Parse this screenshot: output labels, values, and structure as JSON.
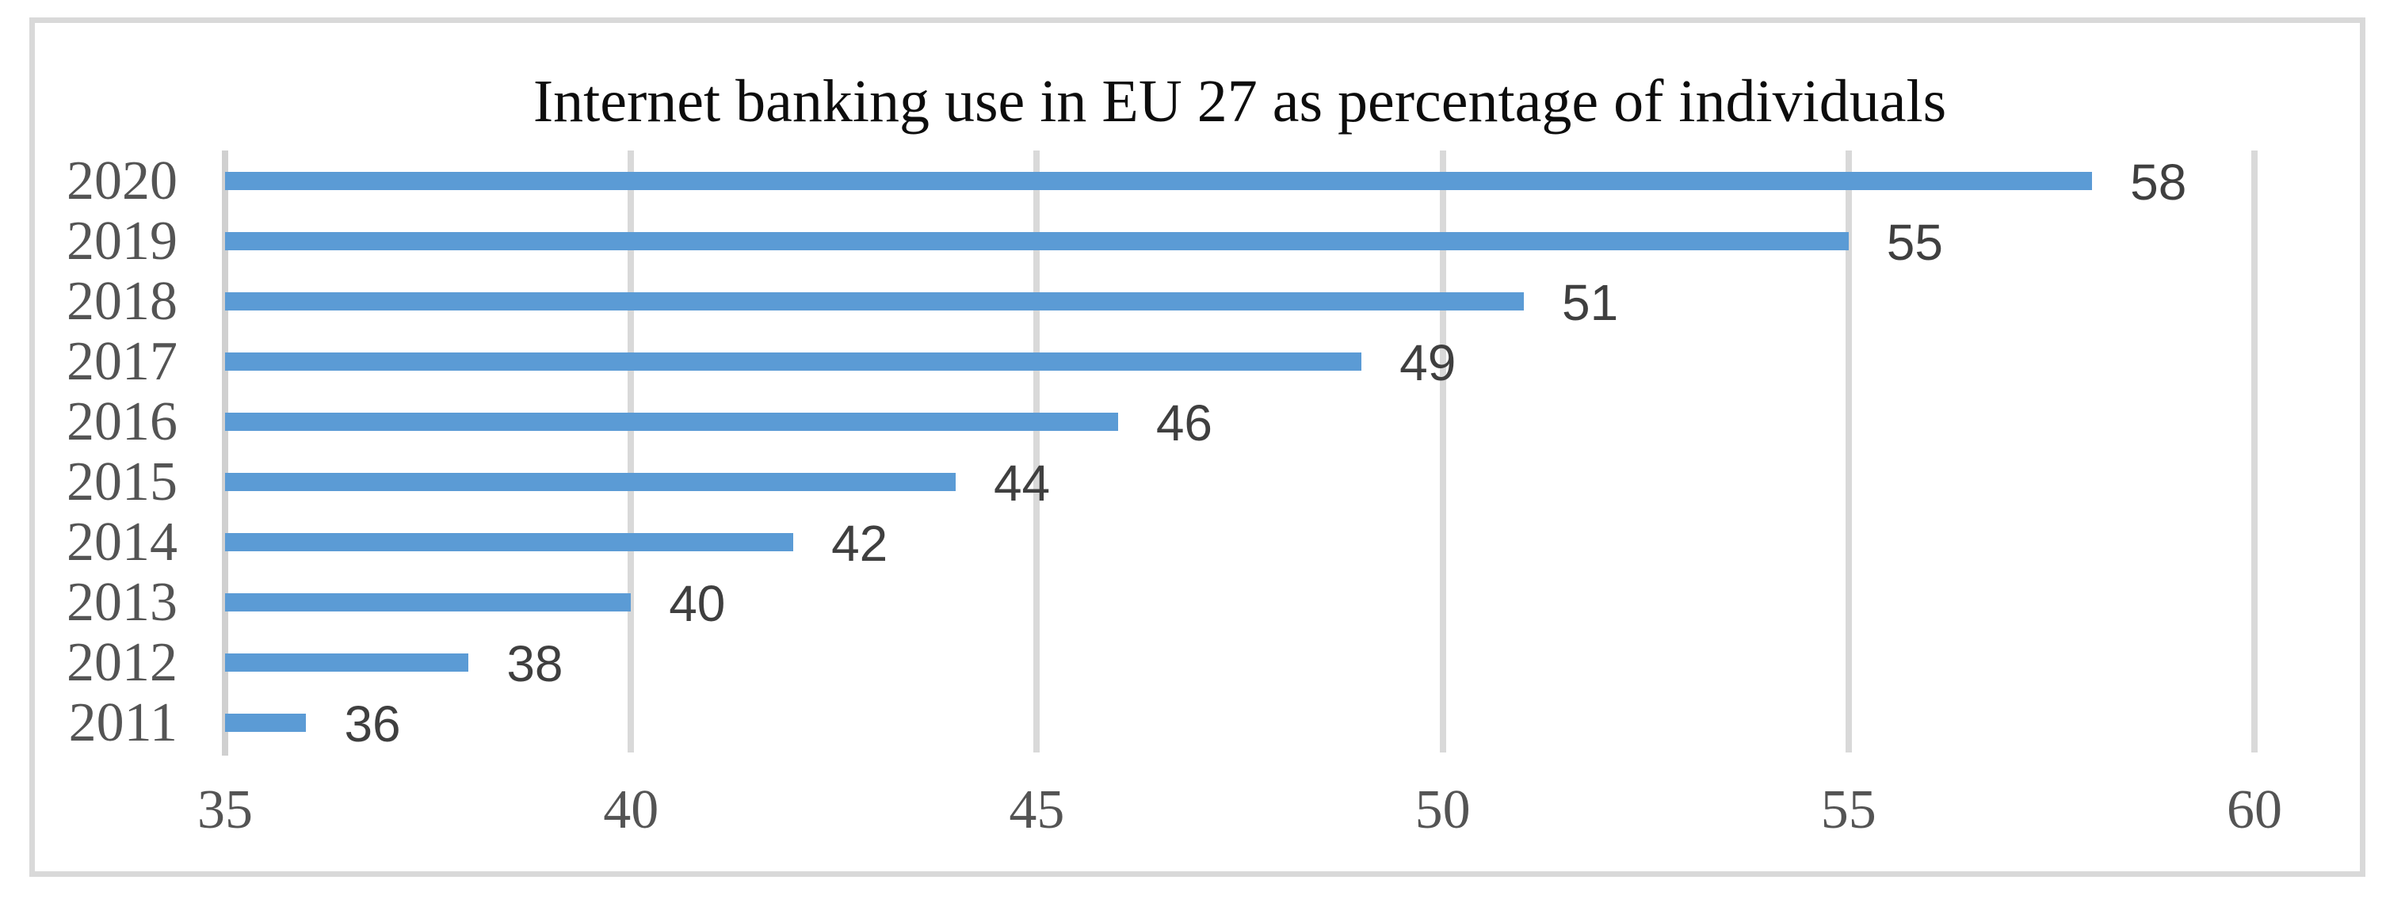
{
  "figure": {
    "border_color": "#D9D9D9",
    "background_color": "#FFFFFF"
  },
  "chart_data": {
    "type": "bar",
    "orientation": "horizontal",
    "title": "Internet banking use in EU 27 as percentage of individuals",
    "categories": [
      "2020",
      "2019",
      "2018",
      "2017",
      "2016",
      "2015",
      "2014",
      "2013",
      "2012",
      "2011"
    ],
    "values": [
      58,
      55,
      51,
      49,
      46,
      44,
      42,
      40,
      38,
      36
    ],
    "data_labels": [
      "58",
      "55",
      "51",
      "49",
      "46",
      "44",
      "42",
      "40",
      "38",
      "36"
    ],
    "xlabel": "",
    "ylabel": "",
    "xlim": [
      35,
      60
    ],
    "xticks": [
      "35",
      "40",
      "45",
      "50",
      "55",
      "60"
    ],
    "grid": "vertical-major-gridlines",
    "legend": "none",
    "bar_color": "#5B9BD5",
    "gridline_color": "#D9D9D9",
    "axis_line_color": "#D0D0D0",
    "title_color": "#0D0D0D",
    "axis_text_color": "#545454",
    "data_label_color": "#3F3F3F"
  }
}
